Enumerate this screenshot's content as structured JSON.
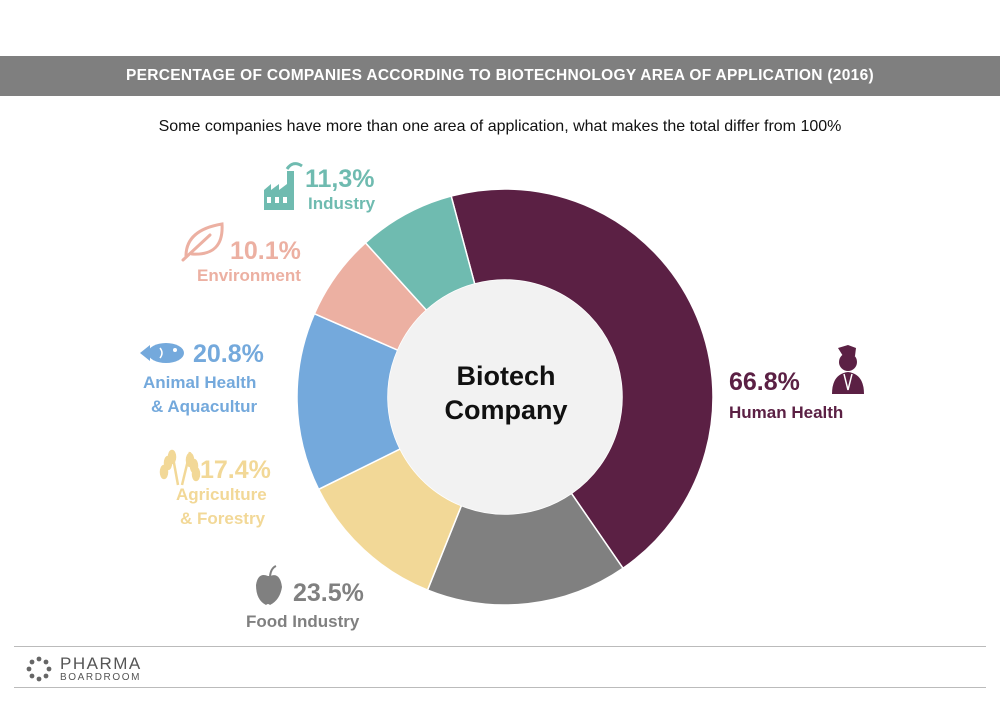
{
  "title": "PERCENTAGE OF COMPANIES ACCORDING TO BIOTECHNOLOGY AREA OF APPLICATION (2016)",
  "subtitle": "Some companies have more than one area of application, what makes the total differ from 100%",
  "center_label": [
    "Biotech",
    "Company"
  ],
  "chart_data": {
    "type": "pie",
    "variant": "donut",
    "title": "PERCENTAGE OF COMPANIES ACCORDING TO BIOTECHNOLOGY AREA OF APPLICATION (2016)",
    "center_text": "Biotech Company",
    "slices": [
      {
        "label": "Human Health",
        "value": 66.8,
        "display": "66.8%",
        "color": "#5b2044",
        "icon": "person-icon"
      },
      {
        "label": "Food Industry",
        "value": 23.5,
        "display": "23.5%",
        "color": "#808080",
        "icon": "apple-icon"
      },
      {
        "label": "Agriculture & Forestry",
        "value": 17.4,
        "display": "17.4%",
        "color": "#f2d897",
        "icon": "wheat-icon"
      },
      {
        "label": "Animal Health & Aquacultur",
        "value": 20.8,
        "display": "20.8%",
        "color": "#74a9dc",
        "icon": "fish-icon"
      },
      {
        "label": "Environment",
        "value": 10.1,
        "display": "10.1%",
        "color": "#ecb0a2",
        "icon": "leaf-icon"
      },
      {
        "label": "Industry",
        "value": 11.3,
        "display": "11,3%",
        "color": "#6fbbb0",
        "icon": "factory-icon"
      }
    ]
  },
  "labels": {
    "human_health": {
      "pct": "66.8%",
      "name": "Human Health"
    },
    "food": {
      "pct": "23.5%",
      "name": "Food Industry"
    },
    "agriculture": {
      "pct": "17.4%",
      "name1": "Agriculture",
      "name2": "& Forestry"
    },
    "animal": {
      "pct": "20.8%",
      "name1": "Animal Health",
      "name2": "& Aquacultur"
    },
    "environment": {
      "pct": "10.1%",
      "name": "Environment"
    },
    "industry": {
      "pct": "11,3%",
      "name": "Industry"
    }
  },
  "logo": {
    "main": "PHARMA",
    "sub": "BOARDROOM"
  }
}
